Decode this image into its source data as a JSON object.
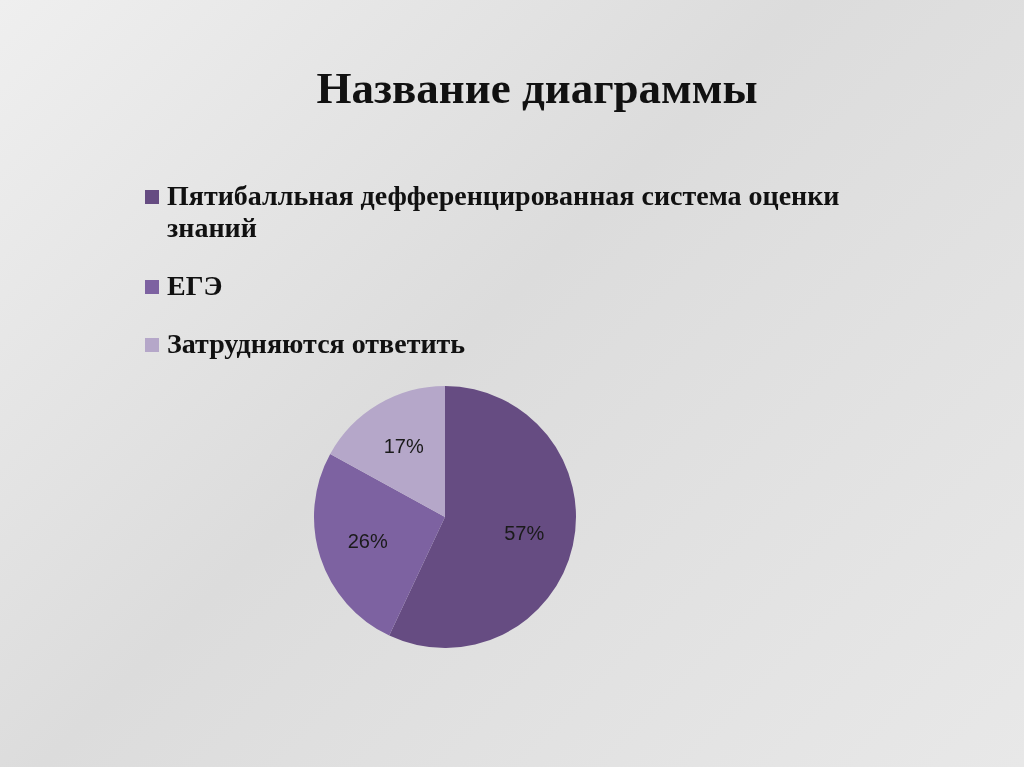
{
  "chart_data": {
    "type": "pie",
    "title": "Название диаграммы",
    "categories": [
      "Пятибалльная дефференцированная система оценки знаний",
      "ЕГЭ",
      "Затрудняются ответить"
    ],
    "values": [
      57,
      26,
      17
    ],
    "colors": [
      "#664c82",
      "#7d62a1",
      "#b5a7c9"
    ],
    "value_labels": [
      "57%",
      "26%",
      "17%"
    ],
    "legend": "top"
  }
}
